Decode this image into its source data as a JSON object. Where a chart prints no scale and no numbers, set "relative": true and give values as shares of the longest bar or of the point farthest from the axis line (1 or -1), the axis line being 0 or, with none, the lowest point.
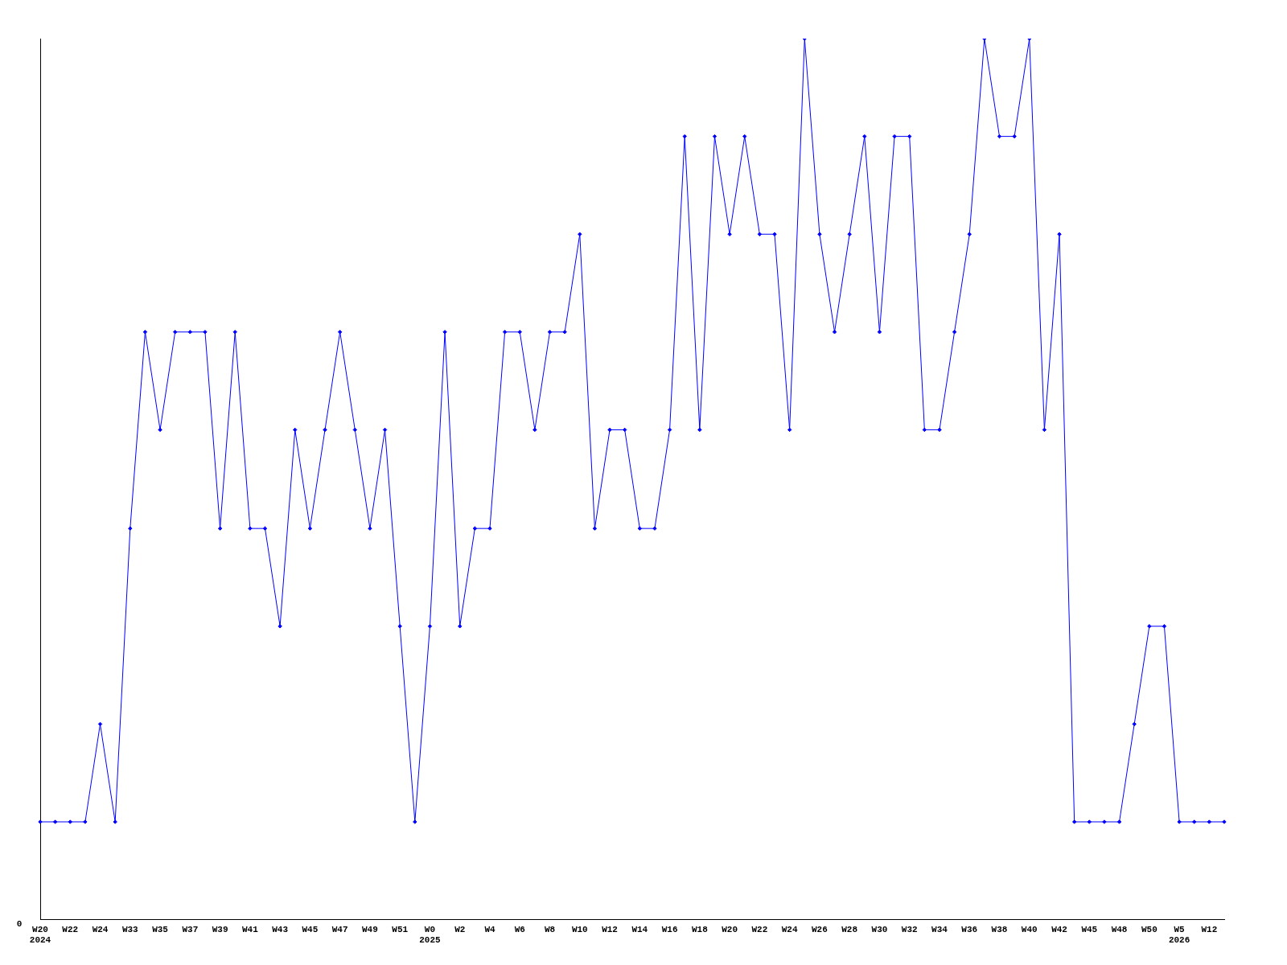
{
  "chart_data": {
    "type": "line",
    "relative": true,
    "annotations": [
      "0"
    ],
    "marker": "diamond",
    "grid": false,
    "legend": false,
    "categories": [
      "W20\n2024",
      null,
      "W22",
      null,
      "W24",
      null,
      "W33",
      null,
      "W35",
      null,
      "W37",
      null,
      "W39",
      null,
      "W41",
      null,
      "W43",
      null,
      "W45",
      null,
      "W47",
      null,
      "W49",
      null,
      "W51",
      null,
      "W0\n2025",
      null,
      "W2",
      null,
      "W4",
      null,
      "W6",
      null,
      "W8",
      null,
      "W10",
      null,
      "W12",
      null,
      "W14",
      null,
      "W16",
      null,
      "W18",
      null,
      "W20",
      null,
      "W22",
      null,
      "W24",
      null,
      "W26",
      null,
      "W28",
      null,
      "W30",
      null,
      "W32",
      null,
      "W34",
      null,
      "W36",
      null,
      "W38",
      null,
      "W40",
      null,
      "W42",
      null,
      "W45",
      null,
      "W48",
      null,
      "W50",
      null,
      "W5\n2026",
      null,
      "W12",
      null
    ],
    "series": [
      {
        "color": "#0000ff",
        "values": [
          0.111,
          0.111,
          0.111,
          0.111,
          0.222,
          0.111,
          0.444,
          0.667,
          0.556,
          0.667,
          0.667,
          0.667,
          0.444,
          0.667,
          0.444,
          0.444,
          0.333,
          0.556,
          0.444,
          0.556,
          0.667,
          0.556,
          0.444,
          0.556,
          0.333,
          0.111,
          0.333,
          0.667,
          0.333,
          0.444,
          0.444,
          0.667,
          0.667,
          0.556,
          0.667,
          0.667,
          0.778,
          0.444,
          0.556,
          0.556,
          0.444,
          0.444,
          0.556,
          0.889,
          0.556,
          0.889,
          0.778,
          0.889,
          0.778,
          0.778,
          0.556,
          1,
          0.778,
          0.667,
          0.778,
          0.889,
          0.667,
          0.889,
          0.889,
          0.556,
          0.556,
          0.667,
          0.778,
          1,
          0.889,
          0.889,
          1,
          0.556,
          0.778,
          0.111,
          0.111,
          0.111,
          0.111,
          0.222,
          0.333,
          0.333,
          0.111,
          0.111,
          0.111,
          0.111
        ]
      }
    ]
  }
}
